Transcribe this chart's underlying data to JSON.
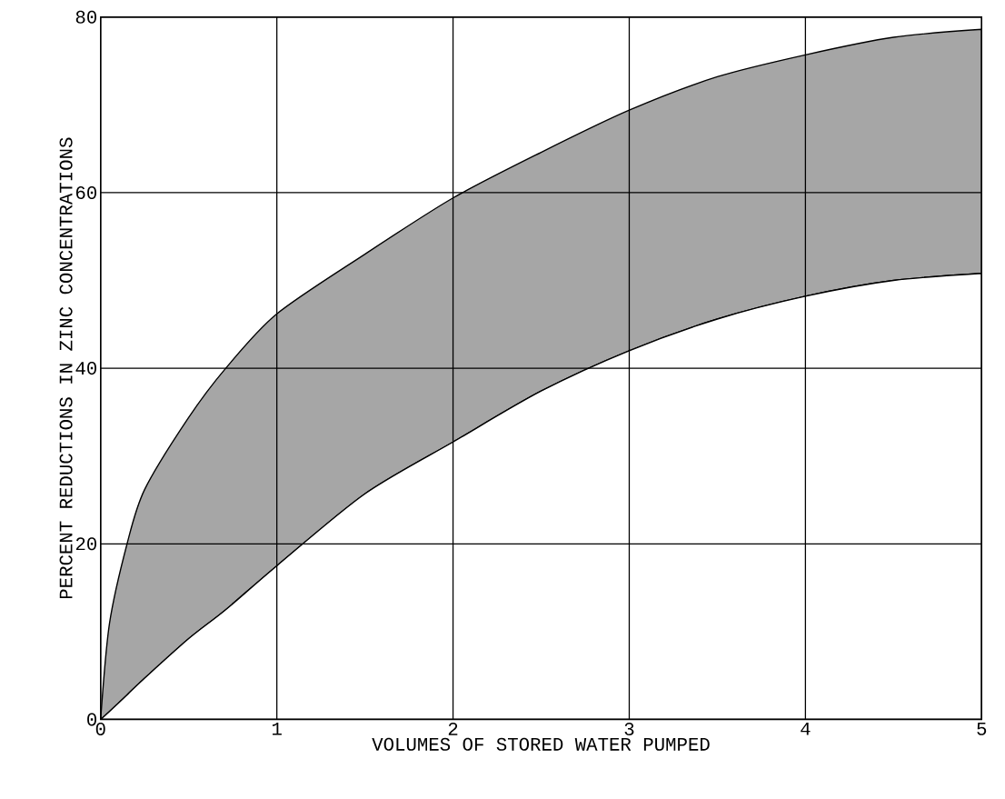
{
  "chart_data": {
    "type": "area",
    "stacked": true,
    "xlabel": "VOLUMES OF STORED WATER PUMPED",
    "ylabel": "PERCENT REDUCTIONS IN ZINC CONCENTRATIONS",
    "x": [
      0,
      0.05,
      0.15,
      0.25,
      0.5,
      0.71,
      1,
      1.5,
      2,
      2.5,
      3,
      3.5,
      4,
      4.5,
      5
    ],
    "series": [
      {
        "color": "#ffffff",
        "values": [
          0,
          0.9,
          2.8,
          4.7,
          9.2,
          12.5,
          17.5,
          25.7,
          31.6,
          37.4,
          42,
          45.6,
          48.2,
          50,
          50.8
        ]
      },
      {
        "color": "#a6a6a6",
        "values": [
          0,
          10,
          17.2,
          21.5,
          25.2,
          27.5,
          28.7,
          27.3,
          27.8,
          27.2,
          27.4,
          27.6,
          27.5,
          27.7,
          27.8
        ]
      }
    ],
    "xlim": [
      0,
      5
    ],
    "ylim": [
      0,
      80
    ],
    "xticks": [
      0,
      1,
      2,
      3,
      4,
      5
    ],
    "yticks": [
      0,
      20,
      40,
      60,
      80
    ],
    "grid": true
  }
}
